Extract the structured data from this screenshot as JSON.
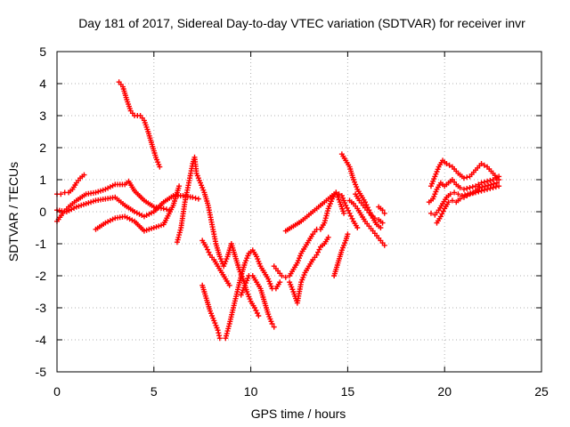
{
  "chart_data": {
    "type": "scatter",
    "title": "Day 181 of 2017, Sidereal Day-to-day VTEC variation (SDTVAR) for receiver invr",
    "xlabel": "GPS time / hours",
    "ylabel": "SDTVAR / TECUs",
    "xlim": [
      0,
      25
    ],
    "ylim": [
      -5,
      5
    ],
    "x_ticks": [
      0,
      5,
      10,
      15,
      20,
      25
    ],
    "y_ticks": [
      -5,
      -4,
      -3,
      -2,
      -1,
      0,
      1,
      2,
      3,
      4,
      5
    ],
    "x_tick_labels": [
      "0",
      "5",
      "10",
      "15",
      "20",
      "25"
    ],
    "y_tick_labels": [
      "-5",
      "-4",
      "-3",
      "-2",
      "-1",
      "0",
      "1",
      "2",
      "3",
      "4",
      "5"
    ],
    "grid": true,
    "legend": "none",
    "marker": "plus",
    "color": "#ff0000",
    "series": [
      {
        "values": [
          [
            0.0,
            0.55
          ],
          [
            0.2,
            0.55
          ],
          [
            0.4,
            0.6
          ],
          [
            0.6,
            0.6
          ],
          [
            0.8,
            0.7
          ],
          [
            1.0,
            0.9
          ],
          [
            1.2,
            1.05
          ],
          [
            1.4,
            1.15
          ]
        ]
      },
      {
        "values": [
          [
            0.0,
            0.05
          ],
          [
            0.5,
            0.0
          ],
          [
            1.0,
            0.15
          ],
          [
            1.5,
            0.25
          ],
          [
            2.0,
            0.35
          ],
          [
            2.5,
            0.4
          ],
          [
            3.0,
            0.45
          ],
          [
            3.5,
            0.2
          ],
          [
            4.0,
            0.0
          ],
          [
            4.5,
            -0.15
          ],
          [
            5.0,
            0.0
          ],
          [
            5.5,
            0.3
          ],
          [
            6.0,
            0.5
          ],
          [
            6.5,
            0.5
          ],
          [
            7.0,
            0.45
          ],
          [
            7.3,
            0.4
          ]
        ]
      },
      {
        "values": [
          [
            0.0,
            -0.3
          ],
          [
            0.3,
            -0.05
          ],
          [
            0.6,
            0.15
          ],
          [
            1.0,
            0.35
          ],
          [
            1.5,
            0.55
          ],
          [
            2.0,
            0.6
          ],
          [
            2.5,
            0.7
          ],
          [
            3.0,
            0.85
          ],
          [
            3.5,
            0.85
          ],
          [
            3.7,
            0.95
          ],
          [
            4.0,
            0.65
          ],
          [
            4.5,
            0.35
          ],
          [
            5.0,
            0.15
          ],
          [
            5.5,
            0.1
          ],
          [
            5.8,
            0.05
          ]
        ]
      },
      {
        "values": [
          [
            2.0,
            -0.55
          ],
          [
            2.5,
            -0.35
          ],
          [
            3.0,
            -0.2
          ],
          [
            3.5,
            -0.15
          ],
          [
            4.0,
            -0.3
          ],
          [
            4.5,
            -0.6
          ],
          [
            5.0,
            -0.5
          ],
          [
            5.5,
            -0.4
          ],
          [
            6.0,
            0.2
          ],
          [
            6.3,
            0.8
          ]
        ]
      },
      {
        "values": [
          [
            3.2,
            4.05
          ],
          [
            3.4,
            3.9
          ],
          [
            3.6,
            3.5
          ],
          [
            3.8,
            3.15
          ],
          [
            4.0,
            3.0
          ],
          [
            4.3,
            3.0
          ],
          [
            4.5,
            2.85
          ],
          [
            4.7,
            2.5
          ],
          [
            4.9,
            2.1
          ],
          [
            5.1,
            1.7
          ],
          [
            5.3,
            1.4
          ]
        ]
      },
      {
        "values": [
          [
            6.2,
            -0.95
          ],
          [
            6.4,
            -0.5
          ],
          [
            6.6,
            0.3
          ],
          [
            6.8,
            0.9
          ],
          [
            7.0,
            1.5
          ],
          [
            7.1,
            1.7
          ],
          [
            7.2,
            1.2
          ],
          [
            7.4,
            0.9
          ],
          [
            7.6,
            0.6
          ],
          [
            7.8,
            0.2
          ],
          [
            8.0,
            -0.4
          ],
          [
            8.2,
            -1.0
          ],
          [
            8.4,
            -1.4
          ],
          [
            8.6,
            -1.7
          ],
          [
            8.8,
            -1.4
          ],
          [
            9.0,
            -1.0
          ],
          [
            9.2,
            -1.4
          ],
          [
            9.4,
            -1.8
          ],
          [
            9.6,
            -2.1
          ],
          [
            9.8,
            -2.5
          ],
          [
            10.0,
            -2.8
          ],
          [
            10.2,
            -3.0
          ],
          [
            10.4,
            -3.25
          ]
        ]
      },
      {
        "values": [
          [
            7.5,
            -0.9
          ],
          [
            7.7,
            -1.1
          ],
          [
            7.9,
            -1.35
          ],
          [
            8.1,
            -1.5
          ],
          [
            8.3,
            -1.7
          ],
          [
            8.5,
            -1.9
          ],
          [
            8.7,
            -2.1
          ],
          [
            8.9,
            -2.3
          ]
        ]
      },
      {
        "values": [
          [
            7.5,
            -2.3
          ],
          [
            7.7,
            -2.7
          ],
          [
            7.9,
            -3.1
          ],
          [
            8.1,
            -3.4
          ],
          [
            8.3,
            -3.7
          ],
          [
            8.4,
            -3.95
          ]
        ]
      },
      {
        "values": [
          [
            8.7,
            -3.95
          ],
          [
            8.9,
            -3.5
          ],
          [
            9.1,
            -3.0
          ],
          [
            9.3,
            -2.5
          ],
          [
            9.5,
            -2.0
          ],
          [
            9.7,
            -1.6
          ],
          [
            9.9,
            -1.3
          ],
          [
            10.1,
            -1.2
          ],
          [
            10.3,
            -1.4
          ],
          [
            10.5,
            -1.7
          ],
          [
            10.7,
            -1.9
          ],
          [
            10.9,
            -2.1
          ],
          [
            11.1,
            -2.4
          ],
          [
            11.3,
            -2.4
          ],
          [
            11.5,
            -2.2
          ]
        ]
      },
      {
        "values": [
          [
            9.5,
            -2.6
          ],
          [
            9.7,
            -2.3
          ],
          [
            9.9,
            -2.0
          ],
          [
            10.1,
            -2.0
          ],
          [
            10.3,
            -2.2
          ],
          [
            10.5,
            -2.4
          ],
          [
            10.7,
            -2.8
          ],
          [
            10.9,
            -3.2
          ],
          [
            11.1,
            -3.5
          ],
          [
            11.2,
            -3.6
          ]
        ]
      },
      {
        "values": [
          [
            11.2,
            -1.7
          ],
          [
            11.4,
            -1.85
          ],
          [
            11.6,
            -2.0
          ],
          [
            11.8,
            -2.05
          ],
          [
            12.0,
            -2.0
          ],
          [
            12.2,
            -1.8
          ],
          [
            12.4,
            -1.6
          ],
          [
            12.6,
            -1.3
          ],
          [
            12.8,
            -1.1
          ],
          [
            13.0,
            -0.9
          ],
          [
            13.2,
            -0.7
          ],
          [
            13.4,
            -0.55
          ],
          [
            13.6,
            -0.55
          ],
          [
            13.8,
            -0.35
          ],
          [
            14.0,
            0.1
          ],
          [
            14.2,
            0.4
          ],
          [
            14.4,
            0.6
          ],
          [
            14.6,
            0.3
          ],
          [
            14.8,
            -0.05
          ]
        ]
      },
      {
        "values": [
          [
            11.8,
            -0.6
          ],
          [
            12.2,
            -0.45
          ],
          [
            12.6,
            -0.3
          ],
          [
            13.0,
            -0.1
          ],
          [
            13.4,
            0.1
          ],
          [
            13.8,
            0.3
          ],
          [
            14.2,
            0.5
          ],
          [
            14.4,
            0.6
          ],
          [
            14.7,
            0.5
          ],
          [
            14.9,
            0.2
          ],
          [
            15.1,
            -0.05
          ],
          [
            15.3,
            -0.3
          ],
          [
            15.5,
            -0.5
          ]
        ]
      },
      {
        "values": [
          [
            12.0,
            -2.2
          ],
          [
            12.2,
            -2.5
          ],
          [
            12.4,
            -2.85
          ],
          [
            12.6,
            -2.2
          ],
          [
            12.8,
            -1.9
          ],
          [
            13.0,
            -1.7
          ],
          [
            13.2,
            -1.5
          ],
          [
            13.4,
            -1.35
          ],
          [
            13.6,
            -1.1
          ],
          [
            13.8,
            -1.0
          ],
          [
            14.0,
            -0.8
          ]
        ]
      },
      {
        "values": [
          [
            14.3,
            -2.0
          ],
          [
            14.5,
            -1.6
          ],
          [
            14.7,
            -1.2
          ],
          [
            14.9,
            -0.9
          ],
          [
            15.0,
            -0.7
          ]
        ]
      },
      {
        "values": [
          [
            14.7,
            1.8
          ],
          [
            14.9,
            1.6
          ],
          [
            15.1,
            1.4
          ],
          [
            15.3,
            1.0
          ],
          [
            15.5,
            0.7
          ],
          [
            15.7,
            0.5
          ],
          [
            15.9,
            0.3
          ],
          [
            16.1,
            0.05
          ],
          [
            16.3,
            -0.2
          ],
          [
            16.5,
            -0.4
          ],
          [
            16.7,
            -0.5
          ]
        ]
      },
      {
        "values": [
          [
            15.1,
            0.35
          ],
          [
            15.3,
            0.25
          ],
          [
            15.5,
            0.1
          ],
          [
            15.7,
            -0.1
          ],
          [
            15.9,
            -0.3
          ],
          [
            16.1,
            -0.45
          ],
          [
            16.3,
            -0.6
          ],
          [
            16.5,
            -0.75
          ],
          [
            16.7,
            -0.9
          ],
          [
            16.9,
            -1.05
          ]
        ]
      },
      {
        "values": [
          [
            15.4,
            0.55
          ],
          [
            15.6,
            0.35
          ],
          [
            15.8,
            0.2
          ],
          [
            16.0,
            0.05
          ],
          [
            16.2,
            -0.1
          ],
          [
            16.4,
            -0.2
          ],
          [
            16.6,
            -0.25
          ],
          [
            16.8,
            -0.35
          ]
        ]
      },
      {
        "values": [
          [
            16.6,
            0.15
          ],
          [
            16.8,
            0.05
          ],
          [
            16.9,
            -0.05
          ]
        ]
      },
      {
        "values": [
          [
            19.3,
            0.8
          ],
          [
            19.5,
            1.1
          ],
          [
            19.7,
            1.4
          ],
          [
            19.9,
            1.6
          ],
          [
            20.1,
            1.5
          ],
          [
            20.4,
            1.4
          ],
          [
            20.7,
            1.2
          ],
          [
            21.0,
            1.05
          ],
          [
            21.3,
            1.1
          ],
          [
            21.6,
            1.3
          ],
          [
            21.9,
            1.5
          ],
          [
            22.2,
            1.4
          ],
          [
            22.5,
            1.2
          ],
          [
            22.8,
            1.0
          ]
        ]
      },
      {
        "values": [
          [
            19.2,
            0.3
          ],
          [
            19.4,
            0.4
          ],
          [
            19.6,
            0.7
          ],
          [
            19.8,
            0.9
          ],
          [
            20.0,
            0.8
          ],
          [
            20.2,
            0.9
          ],
          [
            20.4,
            1.0
          ],
          [
            20.6,
            0.85
          ],
          [
            20.8,
            0.75
          ],
          [
            21.0,
            0.7
          ],
          [
            21.3,
            0.75
          ],
          [
            21.6,
            0.8
          ],
          [
            21.9,
            0.9
          ],
          [
            22.2,
            0.95
          ],
          [
            22.5,
            1.0
          ],
          [
            22.8,
            1.1
          ]
        ]
      },
      {
        "values": [
          [
            19.3,
            -0.05
          ],
          [
            19.5,
            -0.1
          ],
          [
            19.7,
            0.05
          ],
          [
            19.9,
            0.25
          ],
          [
            20.1,
            0.45
          ],
          [
            20.3,
            0.55
          ],
          [
            20.5,
            0.6
          ],
          [
            20.7,
            0.55
          ],
          [
            20.9,
            0.5
          ],
          [
            21.2,
            0.55
          ],
          [
            21.5,
            0.6
          ],
          [
            21.8,
            0.75
          ],
          [
            22.1,
            0.8
          ],
          [
            22.4,
            0.85
          ],
          [
            22.7,
            0.9
          ]
        ]
      },
      {
        "values": [
          [
            19.6,
            -0.35
          ],
          [
            19.8,
            -0.15
          ],
          [
            20.0,
            0.1
          ],
          [
            20.2,
            0.3
          ],
          [
            20.4,
            0.35
          ],
          [
            20.6,
            0.3
          ],
          [
            20.8,
            0.4
          ],
          [
            21.0,
            0.45
          ],
          [
            21.3,
            0.55
          ],
          [
            21.6,
            0.6
          ],
          [
            21.9,
            0.65
          ],
          [
            22.2,
            0.7
          ],
          [
            22.5,
            0.75
          ],
          [
            22.8,
            0.8
          ]
        ]
      }
    ]
  }
}
